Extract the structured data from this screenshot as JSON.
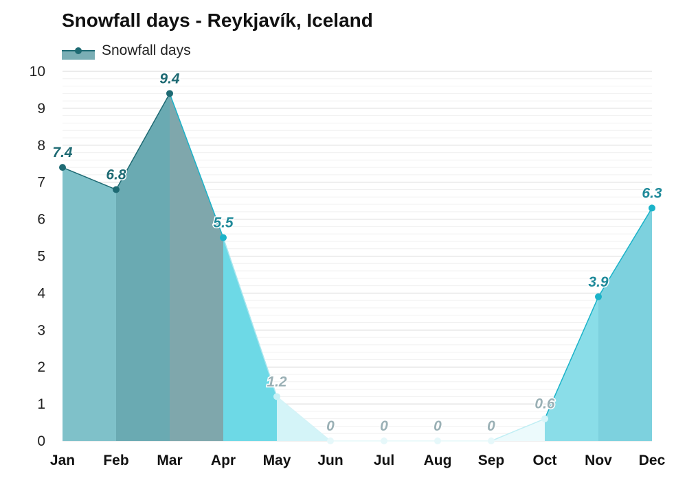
{
  "title": "Snowfall days - Reykjavík, Iceland",
  "legend": {
    "label": "Snowfall days"
  },
  "chart_data": {
    "type": "area",
    "title": "Snowfall days - Reykjavík, Iceland",
    "xlabel": "",
    "ylabel": "",
    "categories": [
      "Jan",
      "Feb",
      "Mar",
      "Apr",
      "May",
      "Jun",
      "Jul",
      "Aug",
      "Sep",
      "Oct",
      "Nov",
      "Dec"
    ],
    "series": [
      {
        "name": "Snowfall days",
        "values": [
          7.4,
          6.8,
          9.4,
          5.5,
          1.2,
          0,
          0,
          0,
          0,
          0.6,
          3.9,
          6.3
        ]
      }
    ],
    "data_labels": [
      "7.4",
      "6.8",
      "9.4",
      "5.5",
      "1.2",
      "0",
      "0",
      "0",
      "0",
      "0.6",
      "3.9",
      "6.3"
    ],
    "ylim": [
      0,
      10
    ],
    "yticks": [
      "0",
      "1",
      "2",
      "3",
      "4",
      "5",
      "6",
      "7",
      "8",
      "9",
      "10"
    ],
    "grid": true,
    "legend_position": "top-left",
    "colors": {
      "line_dark": "#1e6a73",
      "line_light": "#1bb3c9",
      "fill_jan": "#7fc1c9",
      "fill_feb": "#6aaab2",
      "fill_mar": "#7fa7ac",
      "fill_apr": "#6dd9e6",
      "fill_may": "#d4f4f8",
      "fill_summer": "#ecfafc",
      "fill_oct": "#b5ecf3",
      "fill_nov": "#8adde8",
      "fill_dec": "#7dd1de",
      "label_dark": "#1e6a73",
      "label_mid": "#1f8a9a",
      "label_gray": "#9ab0b5"
    }
  }
}
